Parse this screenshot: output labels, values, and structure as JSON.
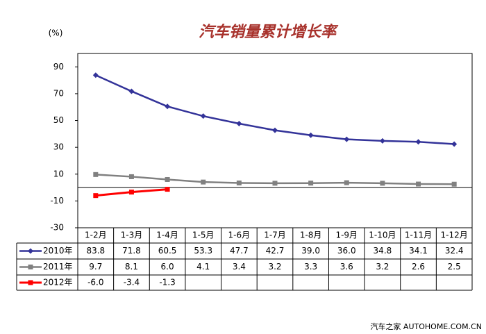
{
  "chart_data": {
    "type": "line",
    "title": "汽车销量累计增长率",
    "y_unit": "(%)",
    "source": "汽车之家 AUTOHOME.COM.CN",
    "categories": [
      "1-2月",
      "1-3月",
      "1-4月",
      "1-5月",
      "1-6月",
      "1-7月",
      "1-8月",
      "1-9月",
      "1-10月",
      "1-11月",
      "1-12月"
    ],
    "series": [
      {
        "name": "2010年",
        "color": "#333399",
        "marker": "diamond",
        "values": [
          83.8,
          71.8,
          60.5,
          53.3,
          47.7,
          42.7,
          39.0,
          36.0,
          34.8,
          34.1,
          32.4
        ],
        "value_labels": [
          "83.8",
          "71.8",
          "60.5",
          "53.3",
          "47.7",
          "42.7",
          "39.0",
          "36.0",
          "34.8",
          "34.1",
          "32.4"
        ]
      },
      {
        "name": "2011年",
        "color": "#808080",
        "marker": "square",
        "values": [
          9.7,
          8.1,
          6.0,
          4.1,
          3.4,
          3.2,
          3.3,
          3.6,
          3.2,
          2.6,
          2.5
        ],
        "value_labels": [
          "9.7",
          "8.1",
          "6.0",
          "4.1",
          "3.4",
          "3.2",
          "3.3",
          "3.6",
          "3.2",
          "2.6",
          "2.5"
        ]
      },
      {
        "name": "2012年",
        "color": "#ff0000",
        "marker": "square",
        "values": [
          -6.0,
          -3.4,
          -1.3,
          null,
          null,
          null,
          null,
          null,
          null,
          null,
          null
        ],
        "value_labels": [
          "-6.0",
          "-3.4",
          "-1.3",
          null,
          null,
          null,
          null,
          null,
          null,
          null,
          null
        ]
      }
    ],
    "ylim": [
      -30,
      100
    ],
    "yticks": [
      -30,
      -10,
      10,
      30,
      50,
      70,
      90
    ],
    "grid": false
  }
}
